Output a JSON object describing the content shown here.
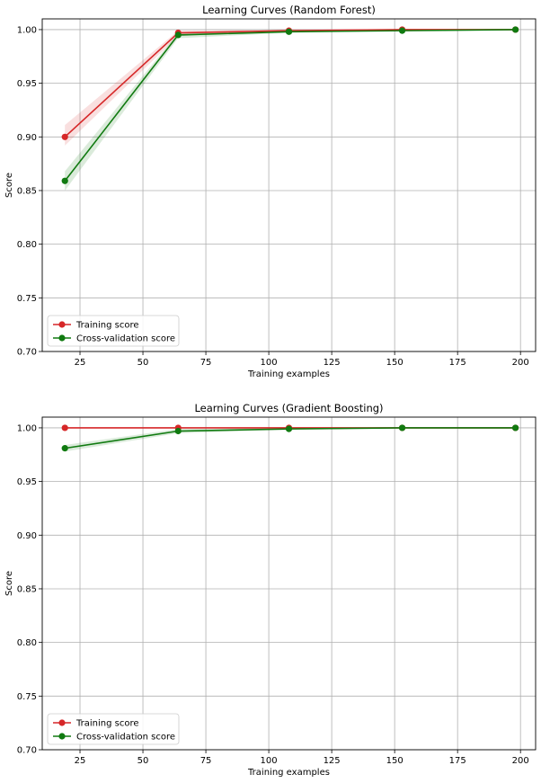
{
  "chart_data": [
    {
      "type": "line",
      "title": "Learning Curves (Random Forest)",
      "xlabel": "Training examples",
      "ylabel": "Score",
      "xlim": [
        10,
        206
      ],
      "ylim": [
        0.7,
        1.01
      ],
      "xticks": [
        25,
        50,
        75,
        100,
        125,
        150,
        175,
        200
      ],
      "yticks": [
        0.7,
        0.75,
        0.8,
        0.85,
        0.9,
        0.95,
        1.0
      ],
      "grid": true,
      "legend": "lower-left",
      "x": [
        19,
        64,
        108,
        153,
        198
      ],
      "series": [
        {
          "name": "Training score",
          "color": "#d62728",
          "values": [
            0.9,
            0.997,
            0.999,
            1.0,
            1.0
          ],
          "band_low": [
            0.892,
            0.994,
            0.998,
            0.999,
            1.0
          ],
          "band_high": [
            0.911,
            0.999,
            1.0,
            1.0,
            1.0
          ]
        },
        {
          "name": "Cross-validation score",
          "color": "#107a10",
          "values": [
            0.859,
            0.995,
            0.998,
            0.999,
            1.0
          ],
          "band_low": [
            0.85,
            0.992,
            0.997,
            0.999,
            1.0
          ],
          "band_high": [
            0.868,
            0.997,
            0.999,
            1.0,
            1.0
          ]
        }
      ]
    },
    {
      "type": "line",
      "title": "Learning Curves (Gradient Boosting)",
      "xlabel": "Training examples",
      "ylabel": "Score",
      "xlim": [
        10,
        206
      ],
      "ylim": [
        0.7,
        1.01
      ],
      "xticks": [
        25,
        50,
        75,
        100,
        125,
        150,
        175,
        200
      ],
      "yticks": [
        0.7,
        0.75,
        0.8,
        0.85,
        0.9,
        0.95,
        1.0
      ],
      "grid": true,
      "legend": "lower-left",
      "x": [
        19,
        64,
        108,
        153,
        198
      ],
      "series": [
        {
          "name": "Training score",
          "color": "#d62728",
          "values": [
            1.0,
            1.0,
            1.0,
            1.0,
            1.0
          ],
          "band_low": [
            1.0,
            1.0,
            1.0,
            1.0,
            1.0
          ],
          "band_high": [
            1.0,
            1.0,
            1.0,
            1.0,
            1.0
          ]
        },
        {
          "name": "Cross-validation score",
          "color": "#107a10",
          "values": [
            0.981,
            0.997,
            0.999,
            1.0,
            1.0
          ],
          "band_low": [
            0.978,
            0.995,
            0.998,
            1.0,
            1.0
          ],
          "band_high": [
            0.984,
            0.999,
            1.0,
            1.0,
            1.0
          ]
        }
      ]
    }
  ]
}
